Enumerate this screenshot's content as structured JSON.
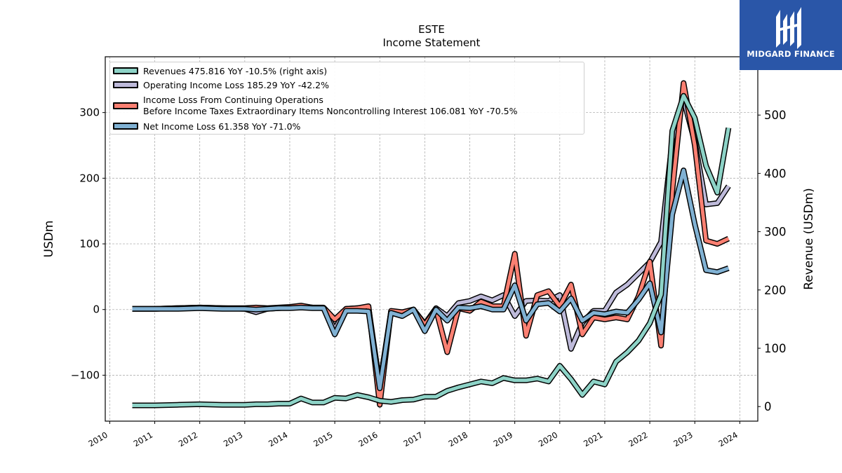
{
  "title_lines": [
    "ESTE",
    "Income Statement"
  ],
  "logo": {
    "text": "MIDGARD FINANCE",
    "background": "#2a56a8"
  },
  "chart_data": {
    "type": "line",
    "title": "ESTE\nIncome Statement",
    "ylabel": "USDm",
    "y2label": "Revenue (USDm)",
    "xlim": [
      2009.9,
      2024.4
    ],
    "ylim": [
      -170,
      385
    ],
    "y2lim": [
      -25,
      600
    ],
    "xticks": [
      "2010",
      "2011",
      "2012",
      "2013",
      "2014",
      "2015",
      "2016",
      "2017",
      "2018",
      "2019",
      "2020",
      "2021",
      "2022",
      "2023",
      "2024"
    ],
    "yticks": [
      -100,
      0,
      100,
      200,
      300
    ],
    "yticklabels": [
      "−100",
      "0",
      "100",
      "200",
      "300"
    ],
    "y2ticks": [
      0,
      100,
      200,
      300,
      400,
      500
    ],
    "grid": true,
    "legend_position": "top-left",
    "series": [
      {
        "name": "Revenues",
        "legend_label": "Revenues  475.816 YoY -10.5% (right axis)",
        "axis": "right",
        "color": "#8dd3c7",
        "points": [
          [
            2010.5,
            2
          ],
          [
            2011.0,
            2
          ],
          [
            2011.5,
            3
          ],
          [
            2012.0,
            4
          ],
          [
            2012.5,
            3
          ],
          [
            2013.0,
            3
          ],
          [
            2013.25,
            4
          ],
          [
            2013.5,
            4
          ],
          [
            2013.75,
            5
          ],
          [
            2014.0,
            5
          ],
          [
            2014.25,
            14
          ],
          [
            2014.5,
            7
          ],
          [
            2014.75,
            7
          ],
          [
            2015.0,
            15
          ],
          [
            2015.25,
            14
          ],
          [
            2015.5,
            20
          ],
          [
            2015.75,
            16
          ],
          [
            2016.0,
            10
          ],
          [
            2016.25,
            8
          ],
          [
            2016.5,
            11
          ],
          [
            2016.75,
            12
          ],
          [
            2017.0,
            17
          ],
          [
            2017.25,
            17
          ],
          [
            2017.5,
            27
          ],
          [
            2017.75,
            33
          ],
          [
            2018.0,
            38
          ],
          [
            2018.25,
            43
          ],
          [
            2018.5,
            40
          ],
          [
            2018.75,
            49
          ],
          [
            2019.0,
            45
          ],
          [
            2019.25,
            45
          ],
          [
            2019.5,
            48
          ],
          [
            2019.75,
            43
          ],
          [
            2020.0,
            70
          ],
          [
            2020.25,
            47
          ],
          [
            2020.5,
            20
          ],
          [
            2020.75,
            43
          ],
          [
            2021.0,
            38
          ],
          [
            2021.25,
            77
          ],
          [
            2021.5,
            93
          ],
          [
            2021.75,
            113
          ],
          [
            2022.0,
            143
          ],
          [
            2022.25,
            192
          ],
          [
            2022.5,
            473
          ],
          [
            2022.75,
            533
          ],
          [
            2023.0,
            495
          ],
          [
            2023.25,
            413
          ],
          [
            2023.5,
            367
          ],
          [
            2023.75,
            478
          ]
        ]
      },
      {
        "name": "Operating Income Loss",
        "legend_label": "Operating Income Loss  185.29 YoY -42.2%",
        "axis": "left",
        "color": "#bebada",
        "points": [
          [
            2010.5,
            1
          ],
          [
            2011.0,
            1
          ],
          [
            2011.5,
            2
          ],
          [
            2012.0,
            3
          ],
          [
            2012.5,
            2
          ],
          [
            2013.0,
            1
          ],
          [
            2013.25,
            -4
          ],
          [
            2013.5,
            1
          ],
          [
            2013.75,
            2
          ],
          [
            2014.0,
            3
          ],
          [
            2014.25,
            5
          ],
          [
            2014.5,
            3
          ],
          [
            2014.75,
            2
          ],
          [
            2015.0,
            -30
          ],
          [
            2015.25,
            1
          ],
          [
            2015.5,
            2
          ],
          [
            2015.75,
            3
          ],
          [
            2016.0,
            -115
          ],
          [
            2016.25,
            -3
          ],
          [
            2016.5,
            -5
          ],
          [
            2016.75,
            0
          ],
          [
            2017.0,
            -22
          ],
          [
            2017.25,
            2
          ],
          [
            2017.5,
            -10
          ],
          [
            2017.75,
            10
          ],
          [
            2018.0,
            13
          ],
          [
            2018.25,
            20
          ],
          [
            2018.5,
            14
          ],
          [
            2018.75,
            22
          ],
          [
            2019.0,
            -10
          ],
          [
            2019.25,
            13
          ],
          [
            2019.5,
            14
          ],
          [
            2019.75,
            13
          ],
          [
            2020.0,
            22
          ],
          [
            2020.25,
            -60
          ],
          [
            2020.5,
            -20
          ],
          [
            2020.75,
            -2
          ],
          [
            2021.0,
            -2
          ],
          [
            2021.25,
            26
          ],
          [
            2021.5,
            38
          ],
          [
            2021.75,
            55
          ],
          [
            2022.0,
            72
          ],
          [
            2022.25,
            103
          ],
          [
            2022.5,
            257
          ],
          [
            2022.75,
            320
          ],
          [
            2023.0,
            255
          ],
          [
            2023.25,
            160
          ],
          [
            2023.5,
            162
          ],
          [
            2023.75,
            188
          ]
        ]
      },
      {
        "name": "Income Loss From Continuing Operations Before Income Taxes Extraordinary Items Noncontrolling Interest",
        "legend_label_lines": [
          "Income Loss From Continuing Operations",
          "Before Income Taxes Extraordinary Items Noncontrolling Interest  106.081 YoY -70.5%"
        ],
        "axis": "left",
        "color": "#fb8072",
        "points": [
          [
            2010.5,
            1
          ],
          [
            2011.0,
            1
          ],
          [
            2011.5,
            2
          ],
          [
            2012.0,
            3
          ],
          [
            2012.5,
            2
          ],
          [
            2013.0,
            2
          ],
          [
            2013.25,
            3
          ],
          [
            2013.5,
            2
          ],
          [
            2013.75,
            3
          ],
          [
            2014.0,
            4
          ],
          [
            2014.25,
            6
          ],
          [
            2014.5,
            3
          ],
          [
            2014.75,
            3
          ],
          [
            2015.0,
            -15
          ],
          [
            2015.25,
            1
          ],
          [
            2015.5,
            2
          ],
          [
            2015.75,
            5
          ],
          [
            2016.0,
            -145
          ],
          [
            2016.25,
            -2
          ],
          [
            2016.5,
            -4
          ],
          [
            2016.75,
            0
          ],
          [
            2017.0,
            -23
          ],
          [
            2017.25,
            0
          ],
          [
            2017.5,
            -65
          ],
          [
            2017.75,
            2
          ],
          [
            2018.0,
            -2
          ],
          [
            2018.25,
            12
          ],
          [
            2018.5,
            5
          ],
          [
            2018.75,
            5
          ],
          [
            2019.0,
            85
          ],
          [
            2019.25,
            -40
          ],
          [
            2019.5,
            22
          ],
          [
            2019.75,
            28
          ],
          [
            2020.0,
            5
          ],
          [
            2020.25,
            38
          ],
          [
            2020.5,
            -38
          ],
          [
            2020.75,
            -12
          ],
          [
            2021.0,
            -15
          ],
          [
            2021.25,
            -12
          ],
          [
            2021.5,
            -15
          ],
          [
            2021.75,
            20
          ],
          [
            2022.0,
            73
          ],
          [
            2022.25,
            -55
          ],
          [
            2022.5,
            180
          ],
          [
            2022.75,
            345
          ],
          [
            2023.0,
            250
          ],
          [
            2023.25,
            105
          ],
          [
            2023.5,
            100
          ],
          [
            2023.75,
            108
          ]
        ]
      },
      {
        "name": "Net Income Loss",
        "legend_label": "Net Income Loss  61.358 YoY -71.0%",
        "axis": "left",
        "color": "#80b1d3",
        "points": [
          [
            2010.5,
            1
          ],
          [
            2011.0,
            1
          ],
          [
            2011.5,
            1
          ],
          [
            2012.0,
            2
          ],
          [
            2012.5,
            1
          ],
          [
            2013.0,
            1
          ],
          [
            2013.25,
            0
          ],
          [
            2013.5,
            1
          ],
          [
            2013.75,
            2
          ],
          [
            2014.0,
            2
          ],
          [
            2014.25,
            3
          ],
          [
            2014.5,
            2
          ],
          [
            2014.75,
            2
          ],
          [
            2015.0,
            -38
          ],
          [
            2015.25,
            -2
          ],
          [
            2015.5,
            -2
          ],
          [
            2015.75,
            -3
          ],
          [
            2016.0,
            -120
          ],
          [
            2016.25,
            -5
          ],
          [
            2016.5,
            -10
          ],
          [
            2016.75,
            0
          ],
          [
            2017.0,
            -33
          ],
          [
            2017.25,
            0
          ],
          [
            2017.5,
            -17
          ],
          [
            2017.75,
            3
          ],
          [
            2018.0,
            2
          ],
          [
            2018.25,
            5
          ],
          [
            2018.5,
            0
          ],
          [
            2018.75,
            0
          ],
          [
            2019.0,
            37
          ],
          [
            2019.25,
            -17
          ],
          [
            2019.5,
            8
          ],
          [
            2019.75,
            10
          ],
          [
            2020.0,
            -3
          ],
          [
            2020.25,
            17
          ],
          [
            2020.5,
            -17
          ],
          [
            2020.75,
            -5
          ],
          [
            2021.0,
            -7
          ],
          [
            2021.25,
            -3
          ],
          [
            2021.5,
            -5
          ],
          [
            2021.75,
            15
          ],
          [
            2022.0,
            40
          ],
          [
            2022.25,
            -35
          ],
          [
            2022.5,
            145
          ],
          [
            2022.75,
            212
          ],
          [
            2023.0,
            130
          ],
          [
            2023.25,
            60
          ],
          [
            2023.5,
            57
          ],
          [
            2023.75,
            63
          ]
        ]
      }
    ]
  }
}
